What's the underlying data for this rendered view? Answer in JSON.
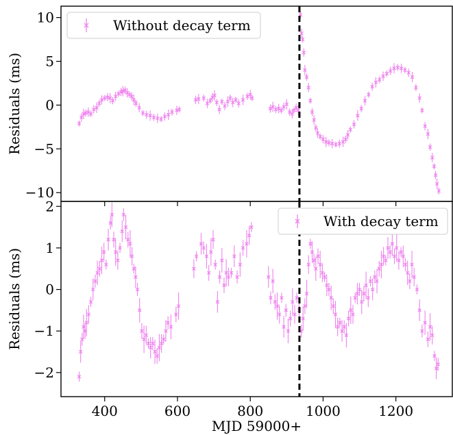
{
  "figure": {
    "xlabel": "MJD 59000+",
    "ylabel_top": "Residuals (ms)",
    "ylabel_bottom": "Residuals (ms)"
  },
  "colors": {
    "points": "#ee82ee",
    "axes": "#000000",
    "vline": "#000000"
  },
  "chart_data": [
    {
      "type": "scatter",
      "panel": "top",
      "legend": "Without decay term",
      "legend_position": "top-left",
      "xlim": [
        280,
        1355
      ],
      "ylim": [
        -11.0,
        11.3
      ],
      "xticks": [
        400,
        600,
        800,
        1000,
        1200
      ],
      "yticks": [
        -10,
        -5,
        0,
        5,
        10
      ],
      "ytick_labels": [
        "−10",
        "−5",
        "0",
        "5",
        "10"
      ],
      "vline_x": 935,
      "grid": false,
      "points": [
        [
          330,
          -2.1
        ],
        [
          336,
          -1.4
        ],
        [
          342,
          -1.0
        ],
        [
          348,
          -0.9
        ],
        [
          355,
          -0.8
        ],
        [
          362,
          -1.0
        ],
        [
          370,
          -0.5
        ],
        [
          378,
          -0.3
        ],
        [
          385,
          0.2
        ],
        [
          392,
          0.6
        ],
        [
          400,
          0.8
        ],
        [
          408,
          0.9
        ],
        [
          415,
          0.8
        ],
        [
          422,
          0.5
        ],
        [
          430,
          1.0
        ],
        [
          438,
          1.3
        ],
        [
          445,
          1.5
        ],
        [
          450,
          1.6
        ],
        [
          456,
          1.7
        ],
        [
          462,
          1.4
        ],
        [
          468,
          1.2
        ],
        [
          474,
          1.0
        ],
        [
          480,
          0.6
        ],
        [
          486,
          0.2
        ],
        [
          495,
          -0.3
        ],
        [
          505,
          -0.9
        ],
        [
          515,
          -1.1
        ],
        [
          525,
          -1.2
        ],
        [
          535,
          -1.4
        ],
        [
          545,
          -1.5
        ],
        [
          555,
          -1.6
        ],
        [
          565,
          -1.3
        ],
        [
          575,
          -1.1
        ],
        [
          585,
          -0.8
        ],
        [
          598,
          -0.6
        ],
        [
          605,
          -0.5
        ],
        [
          650,
          0.6
        ],
        [
          658,
          0.7
        ],
        [
          672,
          0.8
        ],
        [
          682,
          0.2
        ],
        [
          690,
          0.5
        ],
        [
          696,
          0.9
        ],
        [
          702,
          1.1
        ],
        [
          708,
          0.3
        ],
        [
          715,
          -0.5
        ],
        [
          722,
          0.4
        ],
        [
          730,
          -0.1
        ],
        [
          738,
          0.4
        ],
        [
          745,
          0.8
        ],
        [
          752,
          0.3
        ],
        [
          760,
          0.6
        ],
        [
          768,
          0.2
        ],
        [
          780,
          0.6
        ],
        [
          792,
          1.0
        ],
        [
          800,
          1.2
        ],
        [
          805,
          0.8
        ],
        [
          855,
          -0.4
        ],
        [
          862,
          -0.2
        ],
        [
          870,
          -0.5
        ],
        [
          878,
          -0.4
        ],
        [
          885,
          -0.6
        ],
        [
          892,
          -0.2
        ],
        [
          900,
          0.1
        ],
        [
          908,
          -0.8
        ],
        [
          915,
          -1.0
        ],
        [
          920,
          -0.6
        ],
        [
          926,
          -0.3
        ],
        [
          932,
          -0.6
        ],
        [
          938,
          10.3
        ],
        [
          941,
          8.2
        ],
        [
          944,
          7.5
        ],
        [
          947,
          6.0
        ],
        [
          950,
          4.0
        ],
        [
          955,
          3.2
        ],
        [
          960,
          2.0
        ],
        [
          965,
          0.5
        ],
        [
          970,
          -0.8
        ],
        [
          975,
          -1.7
        ],
        [
          980,
          -2.6
        ],
        [
          985,
          -3.2
        ],
        [
          992,
          -3.6
        ],
        [
          1000,
          -3.9
        ],
        [
          1008,
          -4.2
        ],
        [
          1016,
          -4.3
        ],
        [
          1025,
          -4.4
        ],
        [
          1035,
          -4.5
        ],
        [
          1045,
          -4.4
        ],
        [
          1055,
          -4.2
        ],
        [
          1062,
          -3.9
        ],
        [
          1068,
          -3.4
        ],
        [
          1075,
          -2.8
        ],
        [
          1085,
          -2.2
        ],
        [
          1095,
          -1.2
        ],
        [
          1105,
          -0.4
        ],
        [
          1115,
          0.5
        ],
        [
          1125,
          1.2
        ],
        [
          1135,
          2.1
        ],
        [
          1145,
          2.6
        ],
        [
          1155,
          2.9
        ],
        [
          1165,
          3.3
        ],
        [
          1175,
          3.6
        ],
        [
          1185,
          3.9
        ],
        [
          1195,
          4.2
        ],
        [
          1205,
          4.3
        ],
        [
          1215,
          4.2
        ],
        [
          1225,
          4.0
        ],
        [
          1235,
          3.7
        ],
        [
          1245,
          3.2
        ],
        [
          1255,
          2.0
        ],
        [
          1265,
          0.8
        ],
        [
          1272,
          -0.6
        ],
        [
          1280,
          -2.4
        ],
        [
          1288,
          -3.3
        ],
        [
          1294,
          -4.8
        ],
        [
          1300,
          -6.0
        ],
        [
          1305,
          -7.0
        ],
        [
          1309,
          -8.0
        ],
        [
          1313,
          -9.0
        ],
        [
          1318,
          -9.8
        ]
      ]
    },
    {
      "type": "scatter",
      "panel": "bottom",
      "legend": "With decay term",
      "legend_position": "top-right",
      "xlim": [
        280,
        1355
      ],
      "ylim": [
        -2.58,
        2.12
      ],
      "xticks": [
        400,
        600,
        800,
        1000,
        1200
      ],
      "xtick_labels": [
        "400",
        "600",
        "800",
        "1000",
        "1200"
      ],
      "yticks": [
        -2,
        -1,
        0,
        1,
        2
      ],
      "ytick_labels": [
        "−2",
        "−1",
        "0",
        "1",
        "2"
      ],
      "vline_x": 935,
      "grid": false,
      "points": [
        [
          330,
          -2.1
        ],
        [
          334,
          -1.5
        ],
        [
          338,
          -1.2
        ],
        [
          342,
          -0.9
        ],
        [
          346,
          -1.0
        ],
        [
          350,
          -0.8
        ],
        [
          356,
          -0.6
        ],
        [
          362,
          -0.3
        ],
        [
          368,
          0.0
        ],
        [
          374,
          0.2
        ],
        [
          380,
          0.4
        ],
        [
          386,
          0.5
        ],
        [
          392,
          0.7
        ],
        [
          398,
          0.9
        ],
        [
          404,
          0.6
        ],
        [
          410,
          1.2
        ],
        [
          416,
          1.6
        ],
        [
          420,
          1.8
        ],
        [
          425,
          1.2
        ],
        [
          430,
          0.9
        ],
        [
          436,
          0.7
        ],
        [
          442,
          1.0
        ],
        [
          448,
          1.4
        ],
        [
          452,
          1.8
        ],
        [
          458,
          1.5
        ],
        [
          464,
          1.2
        ],
        [
          470,
          1.1
        ],
        [
          475,
          0.8
        ],
        [
          480,
          0.5
        ],
        [
          485,
          0.3
        ],
        [
          490,
          0.0
        ],
        [
          496,
          -0.5
        ],
        [
          502,
          -1.0
        ],
        [
          508,
          -1.2
        ],
        [
          514,
          -1.1
        ],
        [
          520,
          -1.3
        ],
        [
          526,
          -1.4
        ],
        [
          532,
          -1.3
        ],
        [
          538,
          -1.5
        ],
        [
          544,
          -1.6
        ],
        [
          550,
          -1.4
        ],
        [
          556,
          -1.3
        ],
        [
          562,
          -1.2
        ],
        [
          568,
          -1.0
        ],
        [
          574,
          -0.8
        ],
        [
          582,
          -0.9
        ],
        [
          596,
          -0.6
        ],
        [
          603,
          -0.4
        ],
        [
          645,
          0.5
        ],
        [
          652,
          0.8
        ],
        [
          665,
          1.1
        ],
        [
          672,
          1.0
        ],
        [
          680,
          0.8
        ],
        [
          686,
          0.4
        ],
        [
          692,
          0.9
        ],
        [
          698,
          1.2
        ],
        [
          704,
          0.6
        ],
        [
          710,
          -0.3
        ],
        [
          716,
          0.3
        ],
        [
          722,
          0.7
        ],
        [
          728,
          0.1
        ],
        [
          734,
          0.4
        ],
        [
          740,
          0.3
        ],
        [
          748,
          0.4
        ],
        [
          756,
          0.8
        ],
        [
          764,
          0.3
        ],
        [
          772,
          0.6
        ],
        [
          780,
          1.0
        ],
        [
          790,
          1.1
        ],
        [
          797,
          1.3
        ],
        [
          803,
          1.5
        ],
        [
          850,
          0.3
        ],
        [
          856,
          -0.2
        ],
        [
          862,
          0.2
        ],
        [
          868,
          -0.3
        ],
        [
          874,
          -0.4
        ],
        [
          880,
          -0.6
        ],
        [
          886,
          -0.2
        ],
        [
          892,
          -0.9
        ],
        [
          898,
          -0.5
        ],
        [
          904,
          -1.0
        ],
        [
          910,
          -0.7
        ],
        [
          916,
          -0.3
        ],
        [
          922,
          -0.6
        ],
        [
          928,
          -0.2
        ],
        [
          934,
          -0.5
        ],
        [
          940,
          -1.0
        ],
        [
          945,
          -0.7
        ],
        [
          950,
          -0.4
        ],
        [
          955,
          -0.1
        ],
        [
          960,
          0.6
        ],
        [
          965,
          1.1
        ],
        [
          970,
          0.9
        ],
        [
          975,
          0.7
        ],
        [
          980,
          0.5
        ],
        [
          986,
          0.8
        ],
        [
          992,
          0.6
        ],
        [
          998,
          0.4
        ],
        [
          1004,
          0.3
        ],
        [
          1010,
          0.1
        ],
        [
          1016,
          0.0
        ],
        [
          1022,
          -0.2
        ],
        [
          1028,
          -0.4
        ],
        [
          1034,
          -0.6
        ],
        [
          1040,
          -0.9
        ],
        [
          1046,
          -0.8
        ],
        [
          1052,
          -1.0
        ],
        [
          1058,
          -0.9
        ],
        [
          1064,
          -1.1
        ],
        [
          1070,
          -0.7
        ],
        [
          1076,
          -0.5
        ],
        [
          1082,
          -0.6
        ],
        [
          1088,
          -0.2
        ],
        [
          1094,
          -0.1
        ],
        [
          1100,
          0.0
        ],
        [
          1106,
          -0.3
        ],
        [
          1112,
          -0.1
        ],
        [
          1118,
          0.1
        ],
        [
          1124,
          -0.2
        ],
        [
          1130,
          0.2
        ],
        [
          1136,
          0.0
        ],
        [
          1142,
          0.3
        ],
        [
          1148,
          0.2
        ],
        [
          1154,
          0.5
        ],
        [
          1160,
          0.6
        ],
        [
          1166,
          0.8
        ],
        [
          1172,
          0.7
        ],
        [
          1178,
          1.0
        ],
        [
          1184,
          0.9
        ],
        [
          1190,
          1.1
        ],
        [
          1196,
          0.8
        ],
        [
          1202,
          1.0
        ],
        [
          1208,
          0.7
        ],
        [
          1214,
          0.9
        ],
        [
          1220,
          0.8
        ],
        [
          1226,
          0.6
        ],
        [
          1232,
          0.4
        ],
        [
          1238,
          0.2
        ],
        [
          1244,
          0.6
        ],
        [
          1250,
          0.3
        ],
        [
          1258,
          0.0
        ],
        [
          1265,
          -0.5
        ],
        [
          1272,
          -1.0
        ],
        [
          1280,
          -0.8
        ],
        [
          1288,
          -1.2
        ],
        [
          1294,
          -0.9
        ],
        [
          1300,
          -1.1
        ],
        [
          1306,
          -1.6
        ],
        [
          1311,
          -1.9
        ],
        [
          1316,
          -1.8
        ]
      ]
    }
  ]
}
